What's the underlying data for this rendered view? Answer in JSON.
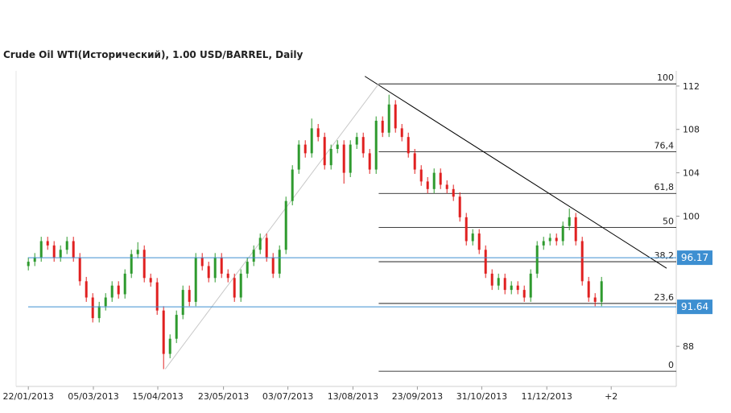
{
  "chart_data": {
    "type": "candlestick",
    "title": "Crude Oil WTI(Исторический), 1.00 USD/BARREL, Daily",
    "up_color": "#2e9a2e",
    "down_color": "#e02020",
    "x": [
      0,
      1,
      2,
      3,
      4,
      5,
      6,
      7,
      8,
      9,
      10,
      11,
      12,
      13,
      14,
      15,
      16,
      17,
      18,
      19,
      20,
      21,
      22,
      23,
      24,
      25,
      26,
      27,
      28,
      29,
      30,
      31,
      32,
      33,
      34,
      35,
      36,
      37,
      38,
      39,
      40,
      41,
      42,
      43,
      44,
      45,
      46,
      47,
      48,
      49,
      50,
      51,
      52,
      53,
      54,
      55,
      56,
      57,
      58,
      59,
      60,
      61,
      62,
      63,
      64,
      65,
      66,
      67,
      68,
      69,
      70,
      71,
      72,
      73,
      74,
      75,
      76,
      77,
      78,
      79,
      80,
      81,
      82,
      83,
      84,
      85,
      86,
      87,
      88,
      89
    ],
    "open": [
      95.4,
      95.8,
      96.2,
      97.7,
      97.3,
      96.2,
      96.9,
      97.7,
      96.2,
      94.0,
      92.5,
      90.6,
      91.7,
      92.5,
      93.6,
      92.8,
      94.7,
      96.5,
      96.9,
      94.3,
      93.9,
      91.3,
      87.3,
      88.7,
      90.9,
      93.2,
      92.1,
      96.2,
      95.4,
      94.3,
      96.2,
      94.7,
      94.3,
      92.5,
      94.7,
      95.8,
      96.9,
      98.0,
      96.2,
      94.7,
      96.9,
      101.4,
      104.3,
      106.6,
      105.8,
      108.1,
      107.3,
      104.7,
      106.2,
      106.6,
      104.0,
      106.6,
      107.3,
      105.8,
      104.3,
      108.8,
      107.7,
      110.3,
      108.1,
      107.3,
      105.8,
      104.3,
      103.2,
      102.5,
      104.0,
      102.9,
      102.5,
      101.8,
      99.9,
      97.7,
      98.4,
      96.9,
      94.7,
      93.6,
      94.3,
      93.2,
      93.6,
      93.2,
      92.5,
      94.7,
      97.3,
      97.7,
      98.0,
      97.7,
      99.1,
      99.9,
      97.7,
      94.0,
      92.5,
      92.1
    ],
    "high": [
      96.2,
      96.6,
      98.1,
      98.1,
      97.7,
      97.3,
      98.1,
      98.1,
      96.6,
      94.4,
      92.9,
      92.1,
      92.9,
      94.0,
      94.0,
      95.1,
      96.9,
      97.6,
      97.3,
      94.7,
      94.3,
      91.7,
      89.1,
      91.3,
      93.6,
      93.6,
      96.6,
      96.6,
      95.8,
      96.6,
      96.6,
      95.1,
      94.7,
      95.1,
      96.2,
      97.3,
      98.4,
      98.4,
      96.6,
      97.3,
      101.8,
      104.7,
      107.0,
      107.0,
      109.0,
      108.5,
      107.7,
      106.6,
      107.0,
      107.0,
      107.0,
      107.7,
      107.7,
      106.2,
      109.2,
      109.2,
      111.2,
      110.7,
      108.5,
      107.7,
      106.2,
      104.7,
      103.6,
      104.4,
      104.4,
      103.3,
      102.9,
      102.2,
      100.3,
      98.8,
      98.8,
      97.3,
      95.1,
      94.7,
      94.7,
      94.0,
      94.0,
      93.6,
      95.1,
      97.7,
      98.1,
      98.4,
      98.4,
      99.5,
      100.7,
      100.3,
      98.1,
      94.4,
      92.9,
      94.4
    ],
    "low": [
      95.0,
      95.4,
      95.8,
      96.9,
      95.8,
      95.8,
      96.5,
      95.8,
      93.6,
      92.1,
      90.2,
      90.2,
      91.3,
      92.1,
      92.4,
      92.4,
      94.3,
      96.1,
      93.9,
      93.5,
      90.9,
      85.9,
      86.9,
      88.3,
      90.5,
      91.7,
      91.7,
      95.0,
      93.9,
      93.9,
      94.3,
      93.9,
      92.1,
      92.1,
      94.3,
      95.4,
      96.5,
      95.8,
      94.3,
      94.3,
      96.5,
      101.0,
      103.9,
      105.4,
      105.4,
      106.9,
      104.3,
      104.3,
      105.8,
      103.0,
      103.6,
      106.2,
      105.4,
      103.9,
      103.9,
      107.3,
      107.3,
      107.7,
      106.9,
      105.4,
      103.9,
      102.8,
      102.1,
      102.1,
      102.5,
      102.1,
      101.4,
      99.5,
      97.3,
      97.3,
      96.5,
      94.3,
      93.2,
      93.2,
      92.8,
      92.8,
      92.8,
      92.1,
      92.1,
      94.3,
      96.9,
      97.3,
      97.3,
      97.3,
      98.7,
      97.3,
      93.6,
      92.1,
      91.7,
      91.7
    ],
    "close": [
      95.8,
      96.2,
      97.7,
      97.3,
      96.2,
      96.9,
      97.7,
      96.2,
      94.0,
      92.5,
      90.6,
      91.7,
      92.5,
      93.6,
      92.8,
      94.7,
      96.5,
      96.9,
      94.3,
      93.9,
      91.3,
      87.3,
      88.7,
      90.9,
      93.2,
      92.1,
      96.2,
      95.4,
      94.3,
      96.2,
      94.7,
      94.3,
      92.5,
      94.7,
      95.8,
      96.9,
      98.0,
      96.2,
      94.7,
      96.9,
      101.4,
      104.3,
      106.6,
      105.8,
      108.1,
      107.3,
      104.7,
      106.2,
      106.6,
      104.0,
      106.6,
      107.3,
      105.8,
      104.3,
      108.8,
      107.7,
      110.3,
      108.1,
      107.3,
      105.8,
      104.3,
      103.2,
      102.5,
      104.0,
      102.9,
      102.5,
      101.8,
      99.9,
      97.7,
      98.4,
      96.9,
      94.7,
      93.6,
      94.3,
      93.2,
      93.6,
      93.2,
      92.5,
      94.7,
      97.3,
      97.7,
      98.0,
      97.7,
      99.1,
      99.9,
      97.7,
      94.0,
      92.5,
      92.1,
      94.0
    ],
    "xlim": [
      -1.9,
      100.6
    ],
    "xticks": [
      {
        "value": 0,
        "label": "22/01/2013"
      },
      {
        "value": 10.1,
        "label": "05/03/2013"
      },
      {
        "value": 20.1,
        "label": "15/04/2013"
      },
      {
        "value": 30.3,
        "label": "23/05/2013"
      },
      {
        "value": 40.3,
        "label": "03/07/2013"
      },
      {
        "value": 50.4,
        "label": "13/08/2013"
      },
      {
        "value": 60.4,
        "label": "23/09/2013"
      },
      {
        "value": 70.4,
        "label": "31/10/2013"
      },
      {
        "value": 80.5,
        "label": "11/12/2013"
      },
      {
        "value": 90.5,
        "label": "+2"
      }
    ],
    "ylim": [
      84.3,
      113.4
    ],
    "yticks": [
      88,
      100,
      104,
      108,
      112
    ],
    "fibonacci": {
      "x_start": 54.4,
      "color": "#000000",
      "levels": [
        {
          "ratio": {
            "value": 100,
            "label": "100"
          },
          "price": 112.2
        },
        {
          "ratio": {
            "value": 76.4,
            "label": "76,4"
          },
          "price": 105.95
        },
        {
          "ratio": {
            "value": 61.8,
            "label": "61,8"
          },
          "price": 102.1
        },
        {
          "ratio": {
            "value": 50,
            "label": "50"
          },
          "price": 98.95
        },
        {
          "ratio": {
            "value": 38.2,
            "label": "38,2"
          },
          "price": 95.8
        },
        {
          "ratio": {
            "value": 23.6,
            "label": "23,6"
          },
          "price": 91.95
        },
        {
          "ratio": {
            "value": 0,
            "label": "0"
          },
          "price": 85.7
        }
      ]
    },
    "hlines": [
      {
        "value": 96.17,
        "color": "#3d8fd1"
      },
      {
        "value": 91.64,
        "color": "#3d8fd1"
      }
    ],
    "trendlines": [
      {
        "x": [
          52.25,
          99.1
        ],
        "y": [
          112.9,
          95.2
        ],
        "color": "#000000"
      },
      {
        "x": [
          21.25,
          54.4
        ],
        "y": [
          85.9,
          112.2
        ],
        "color": "#c8c8c8"
      }
    ]
  }
}
